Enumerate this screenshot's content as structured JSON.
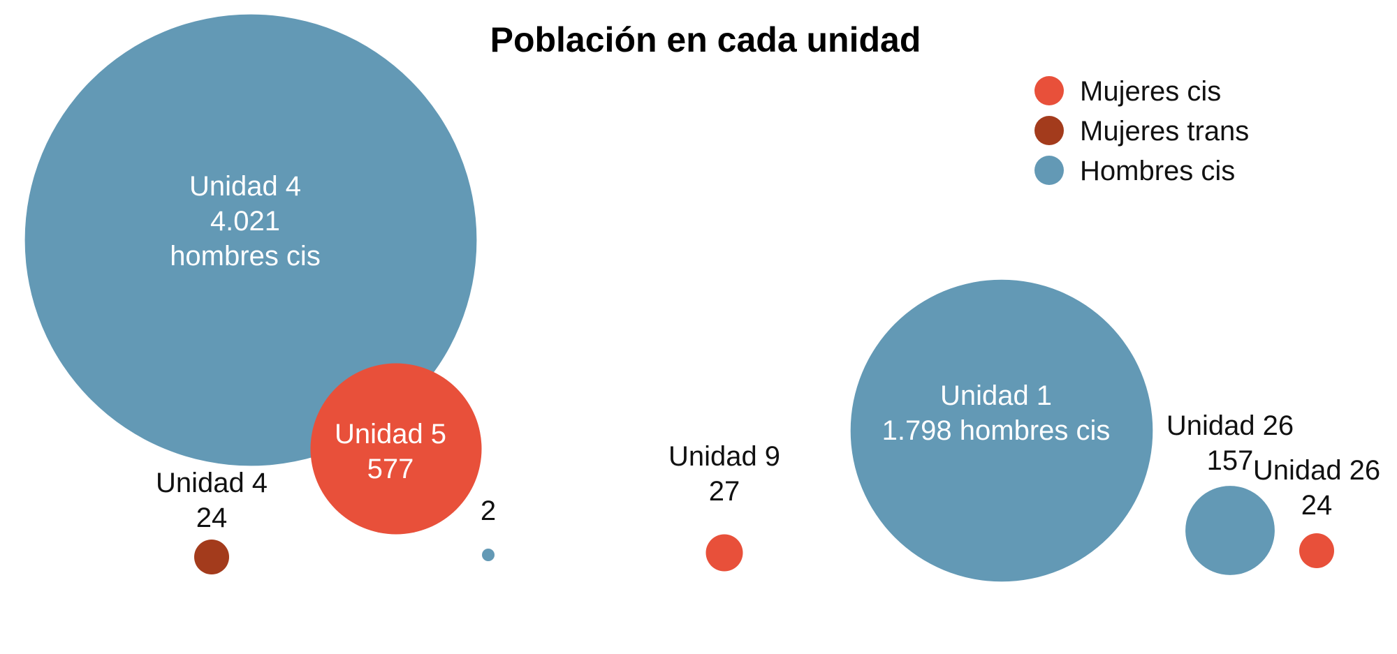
{
  "chart_data": {
    "type": "bubble",
    "title": "Población en  cada unidad",
    "legend_position": "top-right",
    "legend": [
      {
        "name": "Mujeres cis",
        "color": "#e8503a"
      },
      {
        "name": "Mujeres trans",
        "color": "#a33b1c"
      },
      {
        "name": "Hombres cis",
        "color": "#6399b5"
      }
    ],
    "points": [
      {
        "unit": "Unidad 4",
        "group": "Hombres cis",
        "value": 4021,
        "label_lines": [
          "Unidad 4",
          "4.021",
          "hombres cis"
        ]
      },
      {
        "unit": "Unidad 5",
        "group": "Mujeres cis",
        "value": 577,
        "label_lines": [
          "Unidad 5",
          "577"
        ]
      },
      {
        "unit": "Unidad 4",
        "group": "Mujeres trans",
        "value": 24,
        "label_lines": [
          "Unidad 4",
          "24"
        ]
      },
      {
        "unit": "",
        "group": "Hombres cis",
        "value": 2,
        "label_lines": [
          "2"
        ]
      },
      {
        "unit": "Unidad 9",
        "group": "Mujeres cis",
        "value": 27,
        "label_lines": [
          "Unidad 9",
          "27"
        ]
      },
      {
        "unit": "Unidad 1",
        "group": "Hombres cis",
        "value": 1798,
        "label_lines": [
          "Unidad 1",
          "1.798 hombres cis"
        ]
      },
      {
        "unit": "Unidad 26",
        "group": "Hombres cis",
        "value": 157,
        "label_lines": [
          "Unidad 26",
          "157"
        ]
      },
      {
        "unit": "Unidad 26",
        "group": "Mujeres cis",
        "value": 24,
        "label_lines": [
          "Unidad 26",
          "24"
        ]
      }
    ]
  }
}
